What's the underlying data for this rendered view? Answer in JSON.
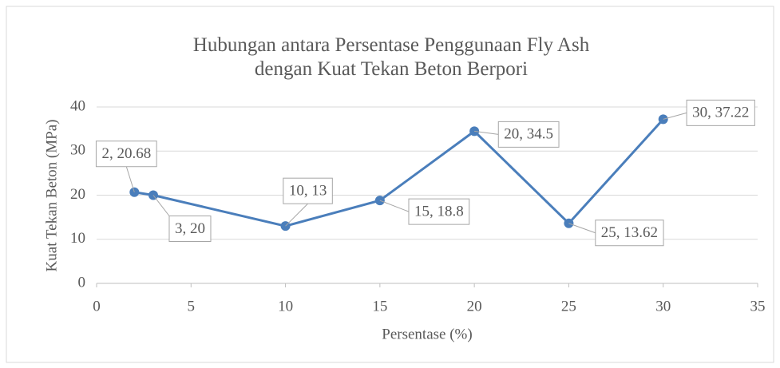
{
  "chart_data": {
    "type": "line",
    "title": "Hubungan antara Persentase Penggunaan Fly Ash dengan Kuat Tekan Beton Berpori",
    "x_label": "Persentase (%)",
    "y_label": "Kuat Tekan Beton (MPa)",
    "series": [
      {
        "color": "#4a7ebb",
        "x": [
          2,
          3,
          10,
          15,
          20,
          25,
          30
        ],
        "values": [
          20.68,
          20,
          13,
          18.8,
          34.5,
          13.62,
          37.22
        ],
        "value_labels": [
          "2, 20.68",
          "3, 20",
          "10, 13",
          "15, 18.8",
          "20, 34.5",
          "25, 13.62",
          "30, 37.22"
        ]
      }
    ],
    "xlim": [
      0,
      35
    ],
    "xticks": [
      0,
      5,
      10,
      15,
      20,
      25,
      30,
      35
    ],
    "ylim": [
      0,
      40
    ],
    "yticks": [
      0,
      10,
      20,
      30,
      40
    ],
    "grid": true
  }
}
